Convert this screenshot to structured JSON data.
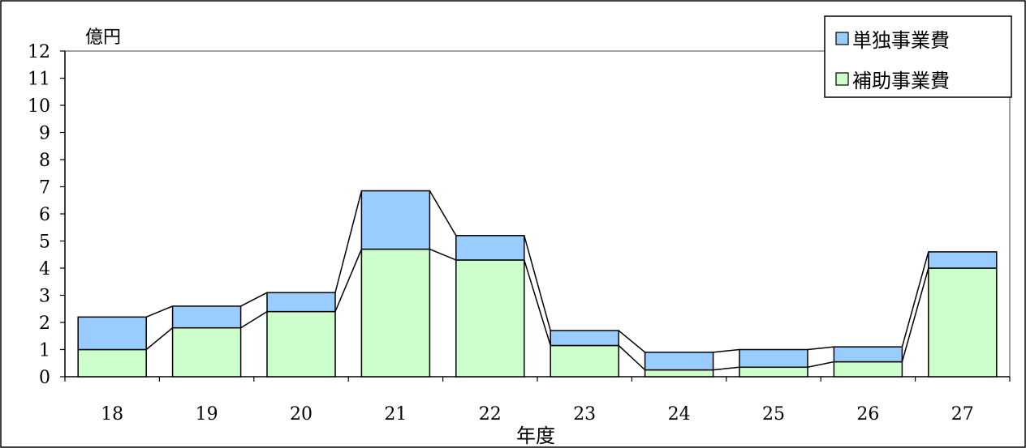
{
  "chart_data": {
    "type": "bar",
    "stacked": true,
    "unit_label": "億円",
    "xlabel": "年度",
    "categories": [
      "18",
      "19",
      "20",
      "21",
      "22",
      "23",
      "24",
      "25",
      "26",
      "27"
    ],
    "series": [
      {
        "name": "補助事業費",
        "color": "#ccffcc",
        "values": [
          1.0,
          1.8,
          2.4,
          4.7,
          4.3,
          1.15,
          0.25,
          0.35,
          0.55,
          4.0
        ]
      },
      {
        "name": "単独事業費",
        "color": "#99ccff",
        "values": [
          1.2,
          0.8,
          0.7,
          2.15,
          0.9,
          0.55,
          0.65,
          0.65,
          0.55,
          0.6
        ]
      }
    ],
    "ylim": [
      0,
      12
    ],
    "yticks": [
      0,
      1,
      2,
      3,
      4,
      5,
      6,
      7,
      8,
      9,
      10,
      11,
      12
    ],
    "series_lines": true,
    "legend_position": "top-right",
    "grid": false
  }
}
